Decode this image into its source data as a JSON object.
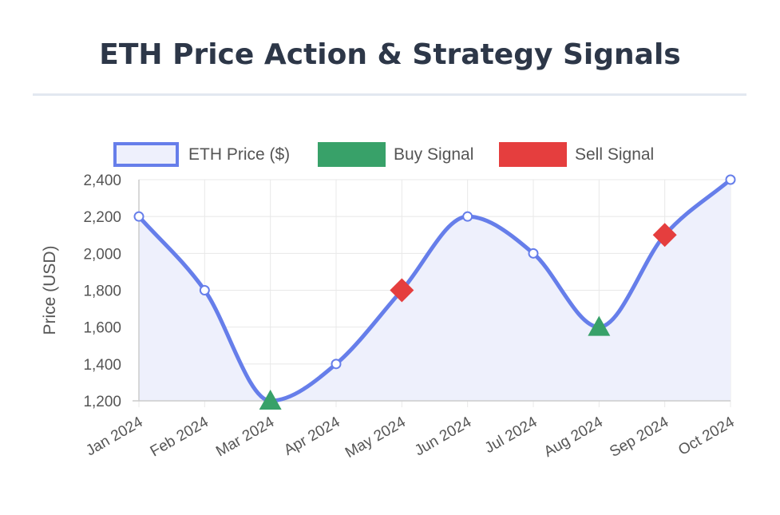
{
  "title": "ETH Price Action & Strategy Signals",
  "chart_data": {
    "type": "line",
    "title": "ETH Price Action & Strategy Signals",
    "xlabel": "",
    "ylabel": "Price (USD)",
    "categories": [
      "Jan 2024",
      "Feb 2024",
      "Mar 2024",
      "Apr 2024",
      "May 2024",
      "Jun 2024",
      "Jul 2024",
      "Aug 2024",
      "Sep 2024",
      "Oct 2024"
    ],
    "ylim": [
      1200,
      2400
    ],
    "yticks": [
      1200,
      1400,
      1600,
      1800,
      2000,
      2200,
      2400
    ],
    "ytick_labels": [
      "1,200",
      "1,400",
      "1,600",
      "1,800",
      "2,000",
      "2,200",
      "2,400"
    ],
    "grid": true,
    "legend_position": "top",
    "series": [
      {
        "name": "ETH Price ($)",
        "kind": "line",
        "color": "#667eea",
        "fill": "#eef0fc",
        "values": [
          2200,
          1800,
          1200,
          1400,
          1800,
          2200,
          2000,
          1600,
          2100,
          2400
        ]
      },
      {
        "name": "Buy Signal",
        "kind": "triangle",
        "color": "#38a169",
        "points": [
          {
            "x": "Mar 2024",
            "y": 1200
          },
          {
            "x": "Aug 2024",
            "y": 1600
          }
        ]
      },
      {
        "name": "Sell Signal",
        "kind": "diamond",
        "color": "#e53e3e",
        "points": [
          {
            "x": "May 2024",
            "y": 1800
          },
          {
            "x": "Sep 2024",
            "y": 2100
          }
        ]
      }
    ]
  }
}
